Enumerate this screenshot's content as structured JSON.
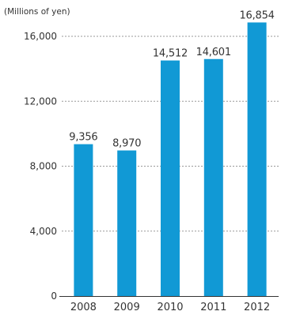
{
  "chart_data": {
    "type": "bar",
    "unit_label": "(Millions of yen)",
    "categories": [
      "2008",
      "2009",
      "2010",
      "2011",
      "2012"
    ],
    "values": [
      9356,
      8970,
      14512,
      14601,
      16854
    ],
    "value_labels": [
      "9,356",
      "8,970",
      "14,512",
      "14,601",
      "16,854"
    ],
    "y_ticks": [
      {
        "value": 0,
        "label": "0"
      },
      {
        "value": 4000,
        "label": "4,000"
      },
      {
        "value": 8000,
        "label": "8,000"
      },
      {
        "value": 12000,
        "label": "12,000"
      },
      {
        "value": 16000,
        "label": "16,000"
      }
    ],
    "ylim": [
      0,
      16000
    ],
    "grid": "dashed horizontal",
    "bar_color": "#1199d5",
    "grid_color": "#999999",
    "axis_color": "#333333"
  }
}
